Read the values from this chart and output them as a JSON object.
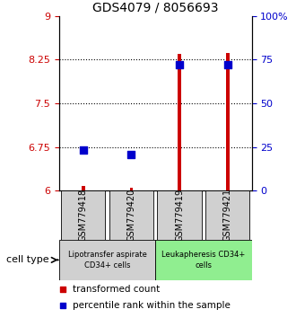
{
  "title": "GDS4079 / 8056693",
  "samples": [
    "GSM779418",
    "GSM779420",
    "GSM779419",
    "GSM779421"
  ],
  "red_values": [
    6.08,
    6.05,
    8.35,
    8.37
  ],
  "blue_values": [
    6.7,
    6.63,
    8.17,
    8.17
  ],
  "ylim": [
    6.0,
    9.0
  ],
  "yticks_left": [
    6,
    6.75,
    7.5,
    8.25,
    9
  ],
  "ytick_labels_left": [
    "6",
    "6.75",
    "7.5",
    "8.25",
    "9"
  ],
  "yticks_right": [
    0,
    25,
    50,
    75,
    100
  ],
  "ytick_labels_right": [
    "0",
    "25",
    "50",
    "75",
    "100%"
  ],
  "hlines": [
    6.75,
    7.5,
    8.25
  ],
  "group1_label": "Lipotransfer aspirate\nCD34+ cells",
  "group2_label": "Leukapheresis CD34+\ncells",
  "group1_color": "#d0d0d0",
  "group2_color": "#90ee90",
  "cell_type_label": "cell type",
  "legend_red": "transformed count",
  "legend_blue": "percentile rank within the sample",
  "red_color": "#cc0000",
  "blue_color": "#0000cc",
  "bar_width": 0.07,
  "dot_size": 28,
  "fig_width": 3.3,
  "fig_height": 3.54
}
